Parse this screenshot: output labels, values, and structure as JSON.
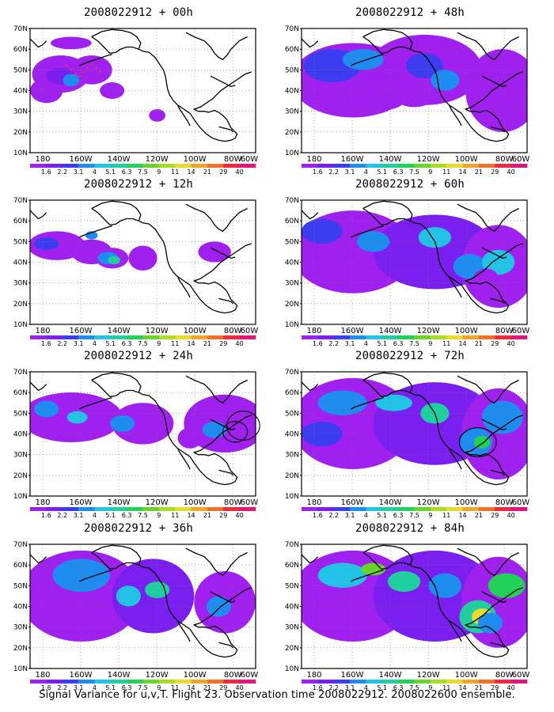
{
  "panels": [
    {
      "title": "2008022912 + 00h",
      "lead": "00h"
    },
    {
      "title": "2008022912 + 48h",
      "lead": "48h"
    },
    {
      "title": "2008022912 + 12h",
      "lead": "12h"
    },
    {
      "title": "2008022912 + 60h",
      "lead": "60h"
    },
    {
      "title": "2008022912 + 24h",
      "lead": "24h"
    },
    {
      "title": "2008022912 + 72h",
      "lead": "72h"
    },
    {
      "title": "2008022912 + 36h",
      "lead": "36h"
    },
    {
      "title": "2008022912 + 84h",
      "lead": "84h"
    }
  ],
  "lat_labels": [
    "70N",
    "60N",
    "50N",
    "40N",
    "30N",
    "20N",
    "10N"
  ],
  "lon_labels": [
    "180",
    "160W",
    "140W",
    "120W",
    "100W",
    "80W",
    "60W"
  ],
  "colorbar": {
    "levels": [
      "1.6",
      "2.2",
      "3.1",
      "4",
      "5.1",
      "6.3",
      "7.5",
      "9",
      "11",
      "14",
      "21",
      "29",
      "40"
    ],
    "colors": [
      "#a020f0",
      "#7b1ff0",
      "#3c3cf0",
      "#1f8cf0",
      "#22c3e6",
      "#1fcfa0",
      "#22d258",
      "#68d628",
      "#a8dc25",
      "#e6dc2e",
      "#f0a528",
      "#f07028",
      "#f02a3c",
      "#e0157f"
    ]
  },
  "footer": "Signal Variance for u,v,T. Flight 23. Observation time 2008022912. 2008022600 ensemble."
}
